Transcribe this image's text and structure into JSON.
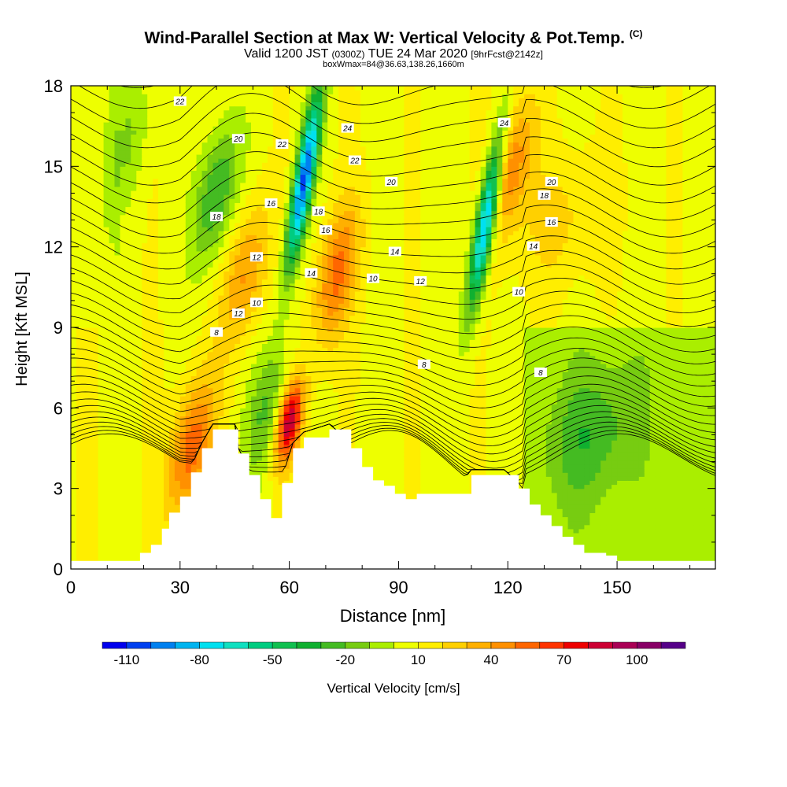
{
  "header": {
    "title": "Wind-Parallel Section at Max W: Vertical Velocity & Pot.Temp.",
    "title_mark": "(C)",
    "valid_prefix": "Valid 1200 JST",
    "valid_utc": "(0300Z)",
    "valid_date": "TUE 24 Mar 2020",
    "forecast": "[9hrFcst@2142z]",
    "box_info": "boxWmax=84@36.63,138.26,1660m"
  },
  "chart_data": {
    "type": "heatmap",
    "xlabel": "Distance [nm]",
    "ylabel": "Height [Kft MSL]",
    "xlim": [
      0,
      177
    ],
    "ylim": [
      0,
      18
    ],
    "x_ticks": [
      "0",
      "30",
      "60",
      "90",
      "120",
      "150"
    ],
    "x_tick_values": [
      0,
      30,
      60,
      90,
      120,
      150
    ],
    "y_ticks": [
      "0",
      "3",
      "6",
      "9",
      "12",
      "15",
      "18"
    ],
    "y_tick_values": [
      0,
      3,
      6,
      9,
      12,
      15,
      18
    ],
    "colorbar": {
      "label": "Vertical Velocity [cm/s]",
      "levels": [
        -120,
        -110,
        -100,
        -90,
        -80,
        -70,
        -60,
        -50,
        -40,
        -30,
        -20,
        -10,
        0,
        10,
        20,
        30,
        40,
        50,
        60,
        70,
        80,
        90,
        100,
        110,
        120
      ],
      "colors": [
        "#0000ee",
        "#0040f0",
        "#0080f0",
        "#00b4f0",
        "#00e0f0",
        "#10e0c0",
        "#00cc80",
        "#10c050",
        "#10b030",
        "#44bb22",
        "#77cc11",
        "#aaee00",
        "#eeff00",
        "#ffee00",
        "#ffd000",
        "#ffb000",
        "#ff9000",
        "#ff6600",
        "#ff3300",
        "#ee0000",
        "#cc0033",
        "#aa0055",
        "#880066",
        "#550088"
      ],
      "tick_labels": [
        "-110",
        "-80",
        "-50",
        "-20",
        "10",
        "40",
        "70",
        "100"
      ],
      "tick_values": [
        -110,
        -80,
        -50,
        -20,
        10,
        40,
        70,
        100
      ]
    },
    "updrafts_cm_s": [
      {
        "x": 60,
        "z": 5.5,
        "w": 84
      },
      {
        "x": 48,
        "z": 11,
        "w": 35
      },
      {
        "x": 73,
        "z": 11,
        "w": 45
      },
      {
        "x": 121,
        "z": 15,
        "w": 40
      },
      {
        "x": 33,
        "z": 4.5,
        "w": 50
      },
      {
        "x": 135,
        "z": 13,
        "w": 15
      }
    ],
    "downdrafts_cm_s": [
      {
        "x": 64,
        "z": 14.5,
        "w": -110
      },
      {
        "x": 114,
        "z": 13,
        "w": -100
      },
      {
        "x": 40,
        "z": 14,
        "w": -40
      },
      {
        "x": 54,
        "z": 6,
        "w": -30
      },
      {
        "x": 143,
        "z": 5,
        "w": -25
      },
      {
        "x": 16,
        "z": 16,
        "w": -18
      }
    ],
    "theta_contour_labels": [
      "22",
      "24",
      "20",
      "22",
      "24",
      "22",
      "20",
      "20",
      "18",
      "18",
      "16",
      "16",
      "18",
      "16",
      "14",
      "14",
      "14",
      "12",
      "12",
      "12",
      "10",
      "10",
      "10",
      "8",
      "8",
      "8"
    ],
    "terrain_kft": [
      [
        0,
        0.3
      ],
      [
        18,
        0.3
      ],
      [
        19,
        0.6
      ],
      [
        22,
        0.9
      ],
      [
        25,
        1.5
      ],
      [
        27,
        2.1
      ],
      [
        30,
        2.7
      ],
      [
        33,
        3.6
      ],
      [
        36,
        4.5
      ],
      [
        39,
        5.2
      ],
      [
        45,
        5.2
      ],
      [
        46,
        4.3
      ],
      [
        49,
        3.5
      ],
      [
        52,
        2.6
      ],
      [
        55,
        1.9
      ],
      [
        58,
        3.2
      ],
      [
        61,
        4.5
      ],
      [
        64,
        4.9
      ],
      [
        71,
        5.2
      ],
      [
        77,
        4.5
      ],
      [
        80,
        3.8
      ],
      [
        83,
        3.3
      ],
      [
        86,
        3.1
      ],
      [
        89,
        2.8
      ],
      [
        92,
        2.6
      ],
      [
        95,
        2.8
      ],
      [
        106,
        2.8
      ],
      [
        110,
        3.5
      ],
      [
        119,
        3.5
      ],
      [
        123,
        3.0
      ],
      [
        126,
        2.4
      ],
      [
        129,
        2.0
      ],
      [
        132,
        1.6
      ],
      [
        135,
        1.2
      ],
      [
        138,
        0.9
      ],
      [
        141,
        0.6
      ],
      [
        147,
        0.5
      ],
      [
        150,
        0.3
      ],
      [
        177,
        0.3
      ]
    ]
  }
}
